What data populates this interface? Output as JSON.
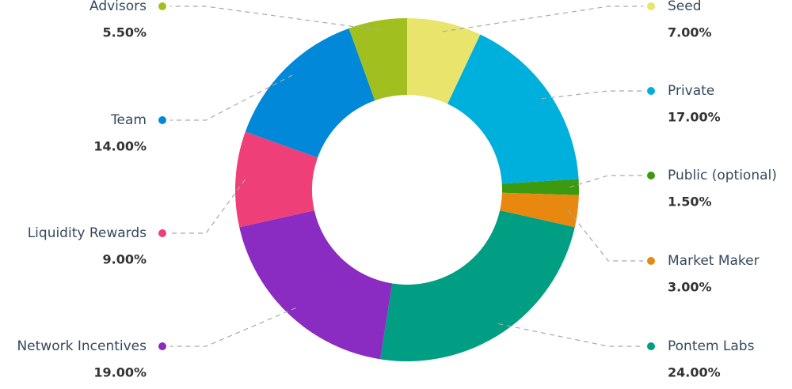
{
  "chart_data": {
    "type": "donut",
    "categories": [
      "Seed",
      "Private",
      "Public (optional)",
      "Market Maker",
      "Pontem Labs",
      "Network Incentives",
      "Liquidity Rewards",
      "Team",
      "Advisors"
    ],
    "values": [
      7,
      17,
      1.5,
      3,
      24,
      19,
      9,
      14,
      5.5
    ],
    "value_labels": [
      "7.00%",
      "17.00%",
      "1.50%",
      "3.00%",
      "24.00%",
      "19.00%",
      "9.00%",
      "14.00%",
      "5.50%"
    ],
    "colors": [
      "#e9e46b",
      "#00b0dc",
      "#3b9a10",
      "#e8880e",
      "#009e82",
      "#8a2bc2",
      "#ef3f78",
      "#0288d8",
      "#a1c01f"
    ]
  }
}
